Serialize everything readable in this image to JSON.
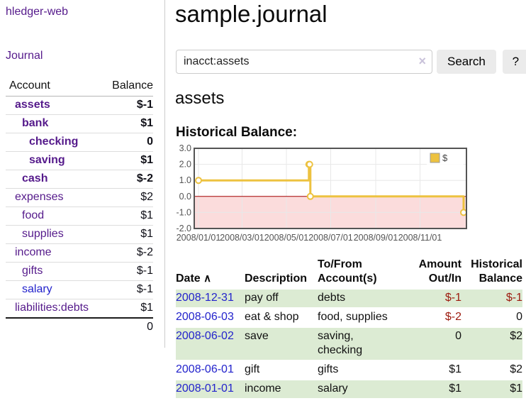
{
  "colors": {
    "link_purple": "#551a8b",
    "link_blue": "#2323cc",
    "negative": "#9c1a0e",
    "negative_muted": "#c07473",
    "row_green": "#dcebd3",
    "series_yellow": "#edc240",
    "zero_line": "#a40000",
    "negative_region": "#fbdcdc",
    "grid": "#e8e8e8",
    "chart_border": "#545454",
    "button_bg": "#ebebeb"
  },
  "sidebar": {
    "app_title": "hledger-web",
    "nav_journal": "Journal",
    "accounts_table": {
      "headers": {
        "account": "Account",
        "balance": "Balance"
      },
      "rows": [
        {
          "account": "assets",
          "depth": 1,
          "bold": true,
          "balance": "$-1",
          "balance_color": "negative"
        },
        {
          "account": "bank",
          "depth": 2,
          "bold": true,
          "balance": "$1",
          "balance_color": "normal"
        },
        {
          "account": "checking",
          "depth": 3,
          "bold": true,
          "balance": "0",
          "balance_color": "normal"
        },
        {
          "account": "saving",
          "depth": 3,
          "bold": true,
          "balance": "$1",
          "balance_color": "normal"
        },
        {
          "account": "cash",
          "depth": 2,
          "bold": true,
          "balance": "$-2",
          "balance_color": "negative"
        },
        {
          "account": "expenses",
          "depth": 1,
          "bold": false,
          "balance": "$2",
          "balance_color": "normal"
        },
        {
          "account": "food",
          "depth": 2,
          "bold": false,
          "balance": "$1",
          "balance_color": "normal"
        },
        {
          "account": "supplies",
          "depth": 2,
          "bold": false,
          "balance": "$1",
          "balance_color": "normal"
        },
        {
          "account": "income",
          "depth": 1,
          "bold": false,
          "balance": "$-2",
          "balance_color": "negative-muted"
        },
        {
          "account": "gifts",
          "depth": 2,
          "bold": false,
          "balance": "$-1",
          "balance_color": "negative-muted"
        },
        {
          "account": "salary",
          "depth": 2,
          "bold": false,
          "balance": "$-1",
          "balance_color": "negative-muted",
          "link_color": "blue"
        },
        {
          "account": "liabilities:debts",
          "depth": 1,
          "bold": false,
          "balance": "$1",
          "balance_color": "normal"
        }
      ],
      "total": "0"
    }
  },
  "header": {
    "title": "sample.journal"
  },
  "search": {
    "value": "inacct:assets",
    "clear_icon": "×",
    "search_button": "Search",
    "help_button": "?"
  },
  "account_page": {
    "heading": "assets",
    "section_label": "Historical Balance:"
  },
  "chart_data": {
    "type": "line",
    "interpolation": "step-after",
    "title": "Historical Balance",
    "series": [
      {
        "name": "$",
        "points": [
          [
            "2008-01-01",
            1
          ],
          [
            "2008-06-01",
            2
          ],
          [
            "2008-06-02",
            2
          ],
          [
            "2008-06-03",
            0
          ],
          [
            "2008-12-31",
            -1
          ]
        ]
      }
    ],
    "ylim": [
      -2.0,
      3.0
    ],
    "yticks": [
      "3.0",
      "2.0",
      "1.0",
      "0.0",
      "-1.0",
      "-2.0"
    ],
    "xticks": [
      "2008/01/01",
      "2008/03/01",
      "2008/05/01",
      "2008/07/01",
      "2008/09/01",
      "2008/11/01"
    ],
    "legend": {
      "label": "$",
      "position": "top-right"
    },
    "grid": true,
    "negative_region_shaded": true
  },
  "register": {
    "headers": {
      "date": "Date",
      "description": "Description",
      "to_from": "To/From Account(s)",
      "amount": "Amount Out/In",
      "balance": "Historical Balance"
    },
    "sort_icon": "∧",
    "rows": [
      {
        "date": "2008-12-31",
        "description": "pay off",
        "to_from": "debts",
        "amount": "$-1",
        "amount_color": "negative",
        "balance": "$-1",
        "balance_color": "negative",
        "shaded": true
      },
      {
        "date": "2008-06-03",
        "description": "eat & shop",
        "to_from": "food, supplies",
        "amount": "$-2",
        "amount_color": "negative",
        "balance": "0",
        "balance_color": "normal",
        "shaded": false
      },
      {
        "date": "2008-06-02",
        "description": "save",
        "to_from": "saving, checking",
        "amount": "0",
        "amount_color": "normal",
        "balance": "$2",
        "balance_color": "normal",
        "shaded": true
      },
      {
        "date": "2008-06-01",
        "description": "gift",
        "to_from": "gifts",
        "amount": "$1",
        "amount_color": "normal",
        "balance": "$2",
        "balance_color": "normal",
        "shaded": false
      },
      {
        "date": "2008-01-01",
        "description": "income",
        "to_from": "salary",
        "amount": "$1",
        "amount_color": "normal",
        "balance": "$1",
        "balance_color": "normal",
        "shaded": true
      }
    ]
  }
}
